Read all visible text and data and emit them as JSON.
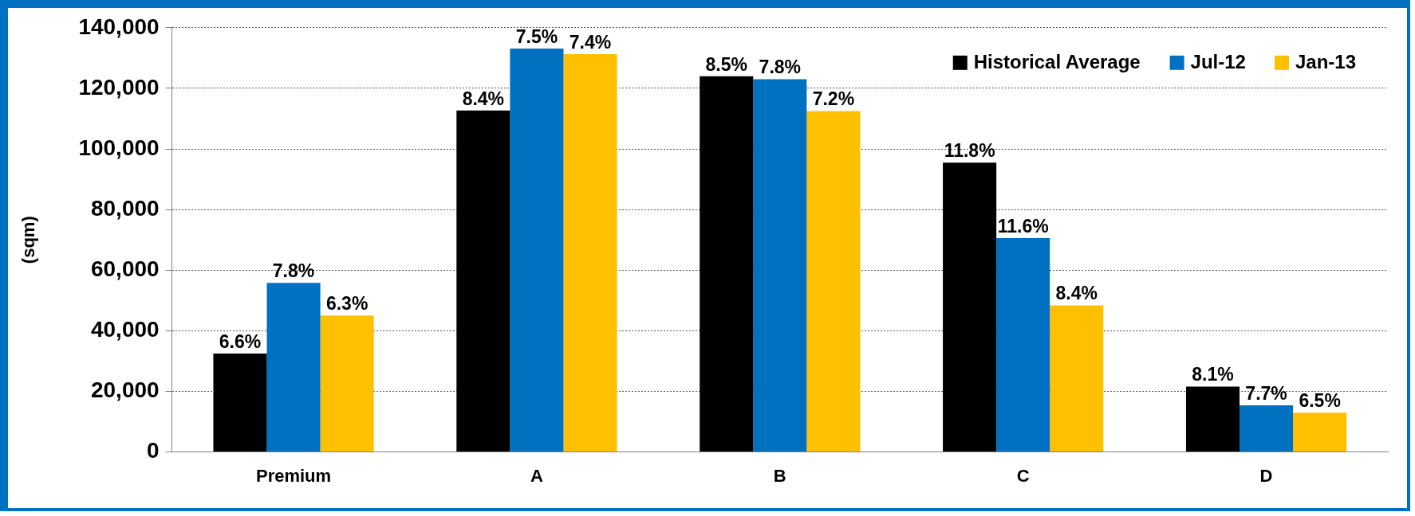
{
  "chart_data": {
    "type": "bar",
    "ylabel": "(sqm)",
    "categories": [
      "Premium",
      "A",
      "B",
      "C",
      "D"
    ],
    "series": [
      {
        "name": "Historical Average",
        "color": "#000000",
        "values": [
          32500,
          112700,
          124000,
          95500,
          21600
        ]
      },
      {
        "name": "Jul-12",
        "color": "#0070c0",
        "values": [
          55800,
          133100,
          123000,
          70600,
          15400
        ]
      },
      {
        "name": "Jan-13",
        "color": "#ffc000",
        "values": [
          45000,
          131300,
          112500,
          48400,
          13000
        ]
      }
    ],
    "annotations": [
      "6.6%",
      "8.4%",
      "8.5%",
      "11.8%",
      "8.1%",
      "7.8%",
      "7.5%",
      "7.8%",
      "11.6%",
      "7.7%",
      "6.3%",
      "7.4%",
      "7.2%",
      "8.4%",
      "6.5%"
    ],
    "ylim": [
      0,
      140000
    ],
    "yticks": [
      0,
      {
        "value": 20000,
        "label": "20,000"
      },
      {
        "value": 40000,
        "label": "40,000"
      },
      {
        "value": 60000,
        "label": "60,000"
      },
      {
        "value": 80000,
        "label": "80,000"
      },
      {
        "value": 100000,
        "label": "100,000"
      },
      {
        "value": 120000,
        "label": "120,000"
      },
      {
        "value": 140000,
        "label": "140,000"
      }
    ],
    "grid": "y",
    "legend": "top right"
  }
}
